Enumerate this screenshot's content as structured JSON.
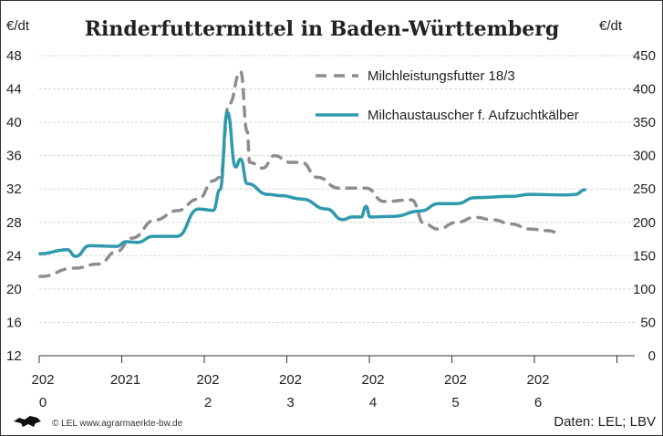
{
  "chart_data": {
    "type": "line",
    "title": "Rinderfuttermittel in Baden-Württemberg",
    "ylabel_left": "€/dt",
    "ylabel_right": "€/dt",
    "ylim_left": [
      12,
      48
    ],
    "ylim_right": [
      0,
      450
    ],
    "yticks_left": [
      "48",
      "44",
      "40",
      "36",
      "32",
      "28",
      "24",
      "20",
      "16",
      "12"
    ],
    "yticks_right": [
      "450",
      "400",
      "350",
      "300",
      "250",
      "200",
      "150",
      "100",
      "50",
      "0"
    ],
    "xlim": [
      2020,
      2027
    ],
    "xtick_labels": [
      [
        "202",
        "0"
      ],
      [
        "2021",
        ""
      ],
      [
        "202",
        "2"
      ],
      [
        "202",
        "3"
      ],
      [
        "202",
        "4"
      ],
      [
        "202",
        "5"
      ],
      [
        "202",
        "6"
      ]
    ],
    "grid": true,
    "legend_position": "top-right",
    "series": [
      {
        "name": "Milchleistungsfutter 18/3",
        "axis": "left",
        "color": "#8f8c8c",
        "style": "dashed",
        "x": [
          2020.01,
          2020.42,
          2020.72,
          2020.94,
          2021.12,
          2021.41,
          2021.67,
          2021.93,
          2022.11,
          2022.19,
          2022.3,
          2022.44,
          2022.52,
          2022.55,
          2022.71,
          2022.85,
          2023.04,
          2023.18,
          2023.37,
          2023.63,
          2023.96,
          2024.18,
          2024.51,
          2024.67,
          2024.83,
          2025.06,
          2025.28,
          2025.5,
          2025.72,
          2025.94,
          2026.17,
          2026.28
        ],
        "y": [
          21.5,
          22.5,
          23.0,
          24.5,
          26.1,
          28.3,
          29.4,
          30.8,
          33.0,
          33.4,
          42.2,
          46.1,
          38.9,
          35.2,
          34.5,
          36.0,
          35.2,
          35.2,
          33.4,
          32.1,
          32.1,
          30.5,
          30.7,
          27.8,
          27.2,
          28.0,
          28.6,
          28.3,
          27.8,
          27.2,
          27.0,
          26.8
        ]
      },
      {
        "name": "Milchaustauscher f. Aufzuchtkälber",
        "axis": "right",
        "color": "#2f9aae",
        "style": "solid",
        "x": [
          2020.01,
          2020.34,
          2020.44,
          2020.61,
          2020.94,
          2021.05,
          2021.19,
          2021.38,
          2021.67,
          2021.93,
          2022.11,
          2022.19,
          2022.28,
          2022.38,
          2022.44,
          2022.52,
          2022.77,
          2022.93,
          2023.18,
          2023.48,
          2023.68,
          2023.79,
          2023.9,
          2023.96,
          2024.01,
          2024.29,
          2024.62,
          2024.84,
          2025.06,
          2025.28,
          2025.73,
          2025.94,
          2026.39,
          2026.5,
          2026.61
        ],
        "y": [
          153,
          159,
          149,
          165,
          164,
          171,
          170,
          179,
          179,
          220,
          218,
          249,
          365,
          283,
          295,
          258,
          242,
          240,
          235,
          220,
          204,
          208,
          208,
          224,
          208,
          209,
          217,
          228,
          228,
          237,
          239,
          242,
          241,
          242,
          249
        ]
      }
    ]
  },
  "footer": {
    "credit": "© LEL www.agrarmaerkte-bw.de",
    "source": "Daten: LEL; LBV",
    "logo": "lion-logo"
  }
}
